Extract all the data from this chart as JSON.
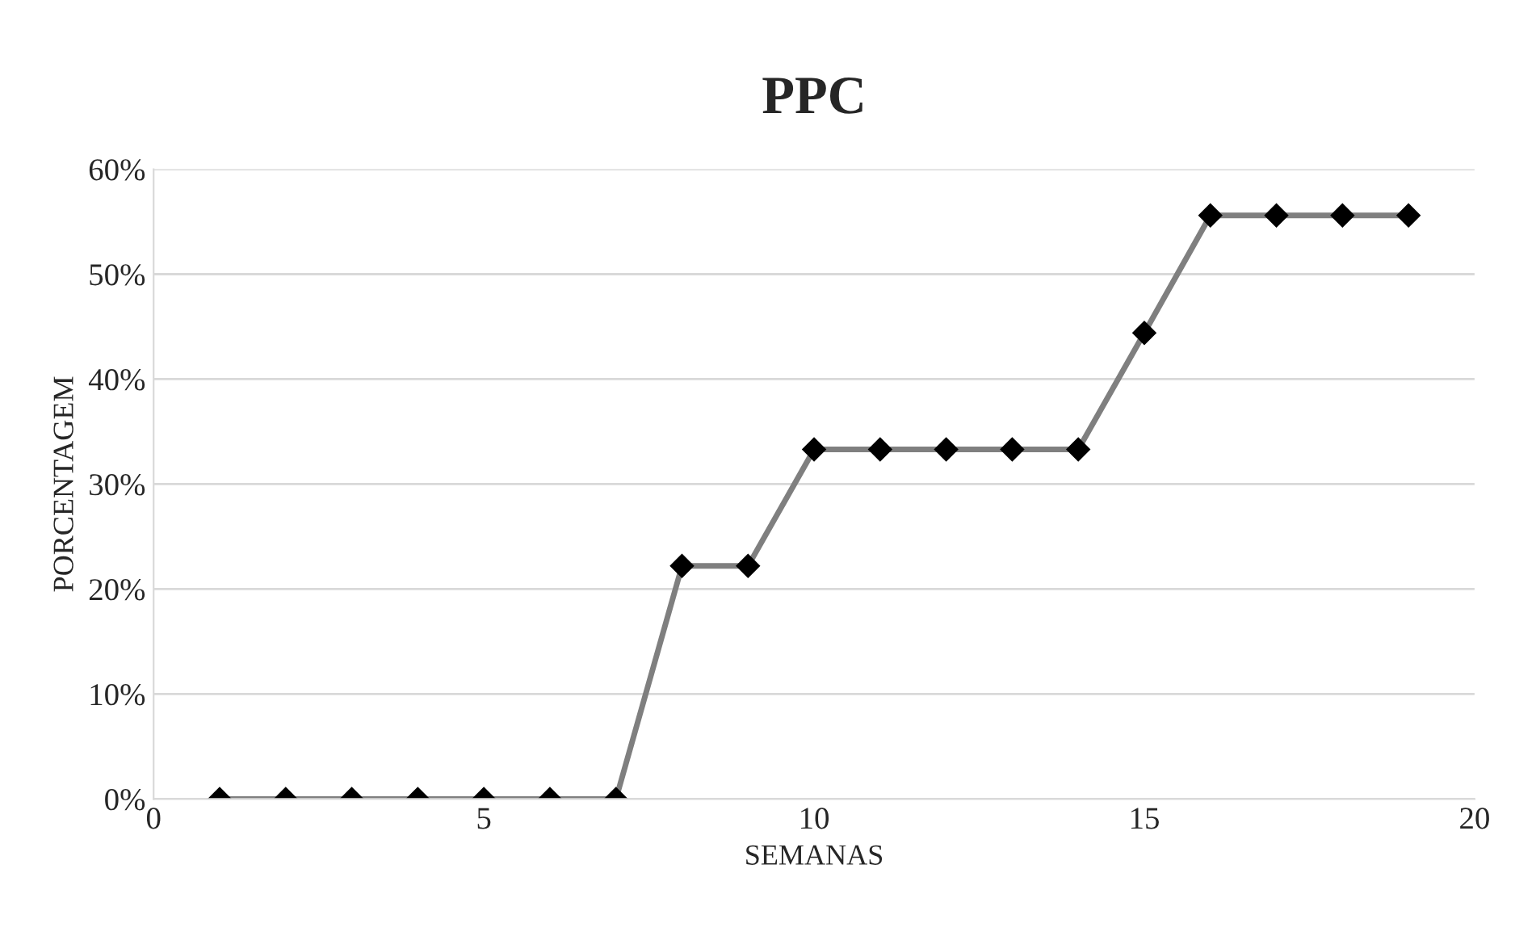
{
  "chart_data": {
    "type": "line",
    "title": "PPC",
    "xlabel": "SEMANAS",
    "ylabel": "PORCENTAGEM",
    "x": [
      1,
      2,
      3,
      4,
      5,
      6,
      7,
      8,
      9,
      10,
      11,
      12,
      13,
      14,
      15,
      16,
      17,
      18,
      19
    ],
    "series": [
      {
        "color": "#7f7f7f",
        "values": [
          0,
          0,
          0,
          0,
          0,
          0,
          0,
          22.2,
          22.2,
          33.3,
          33.3,
          33.3,
          33.3,
          33.3,
          44.4,
          55.6,
          55.6,
          55.6,
          55.6
        ]
      }
    ],
    "xlim": [
      0,
      20
    ],
    "xticks": [
      0,
      5,
      10,
      15,
      20
    ],
    "ylim": [
      0,
      60
    ],
    "yticks": [
      {
        "value": 0,
        "label": "0%"
      },
      {
        "value": 10,
        "label": "10%"
      },
      {
        "value": 20,
        "label": "20%"
      },
      {
        "value": 30,
        "label": "30%"
      },
      {
        "value": 40,
        "label": "40%"
      },
      {
        "value": 50,
        "label": "50%"
      },
      {
        "value": 60,
        "label": "60%"
      }
    ],
    "grid": "y",
    "marker": "diamond",
    "line_style": "solid"
  }
}
